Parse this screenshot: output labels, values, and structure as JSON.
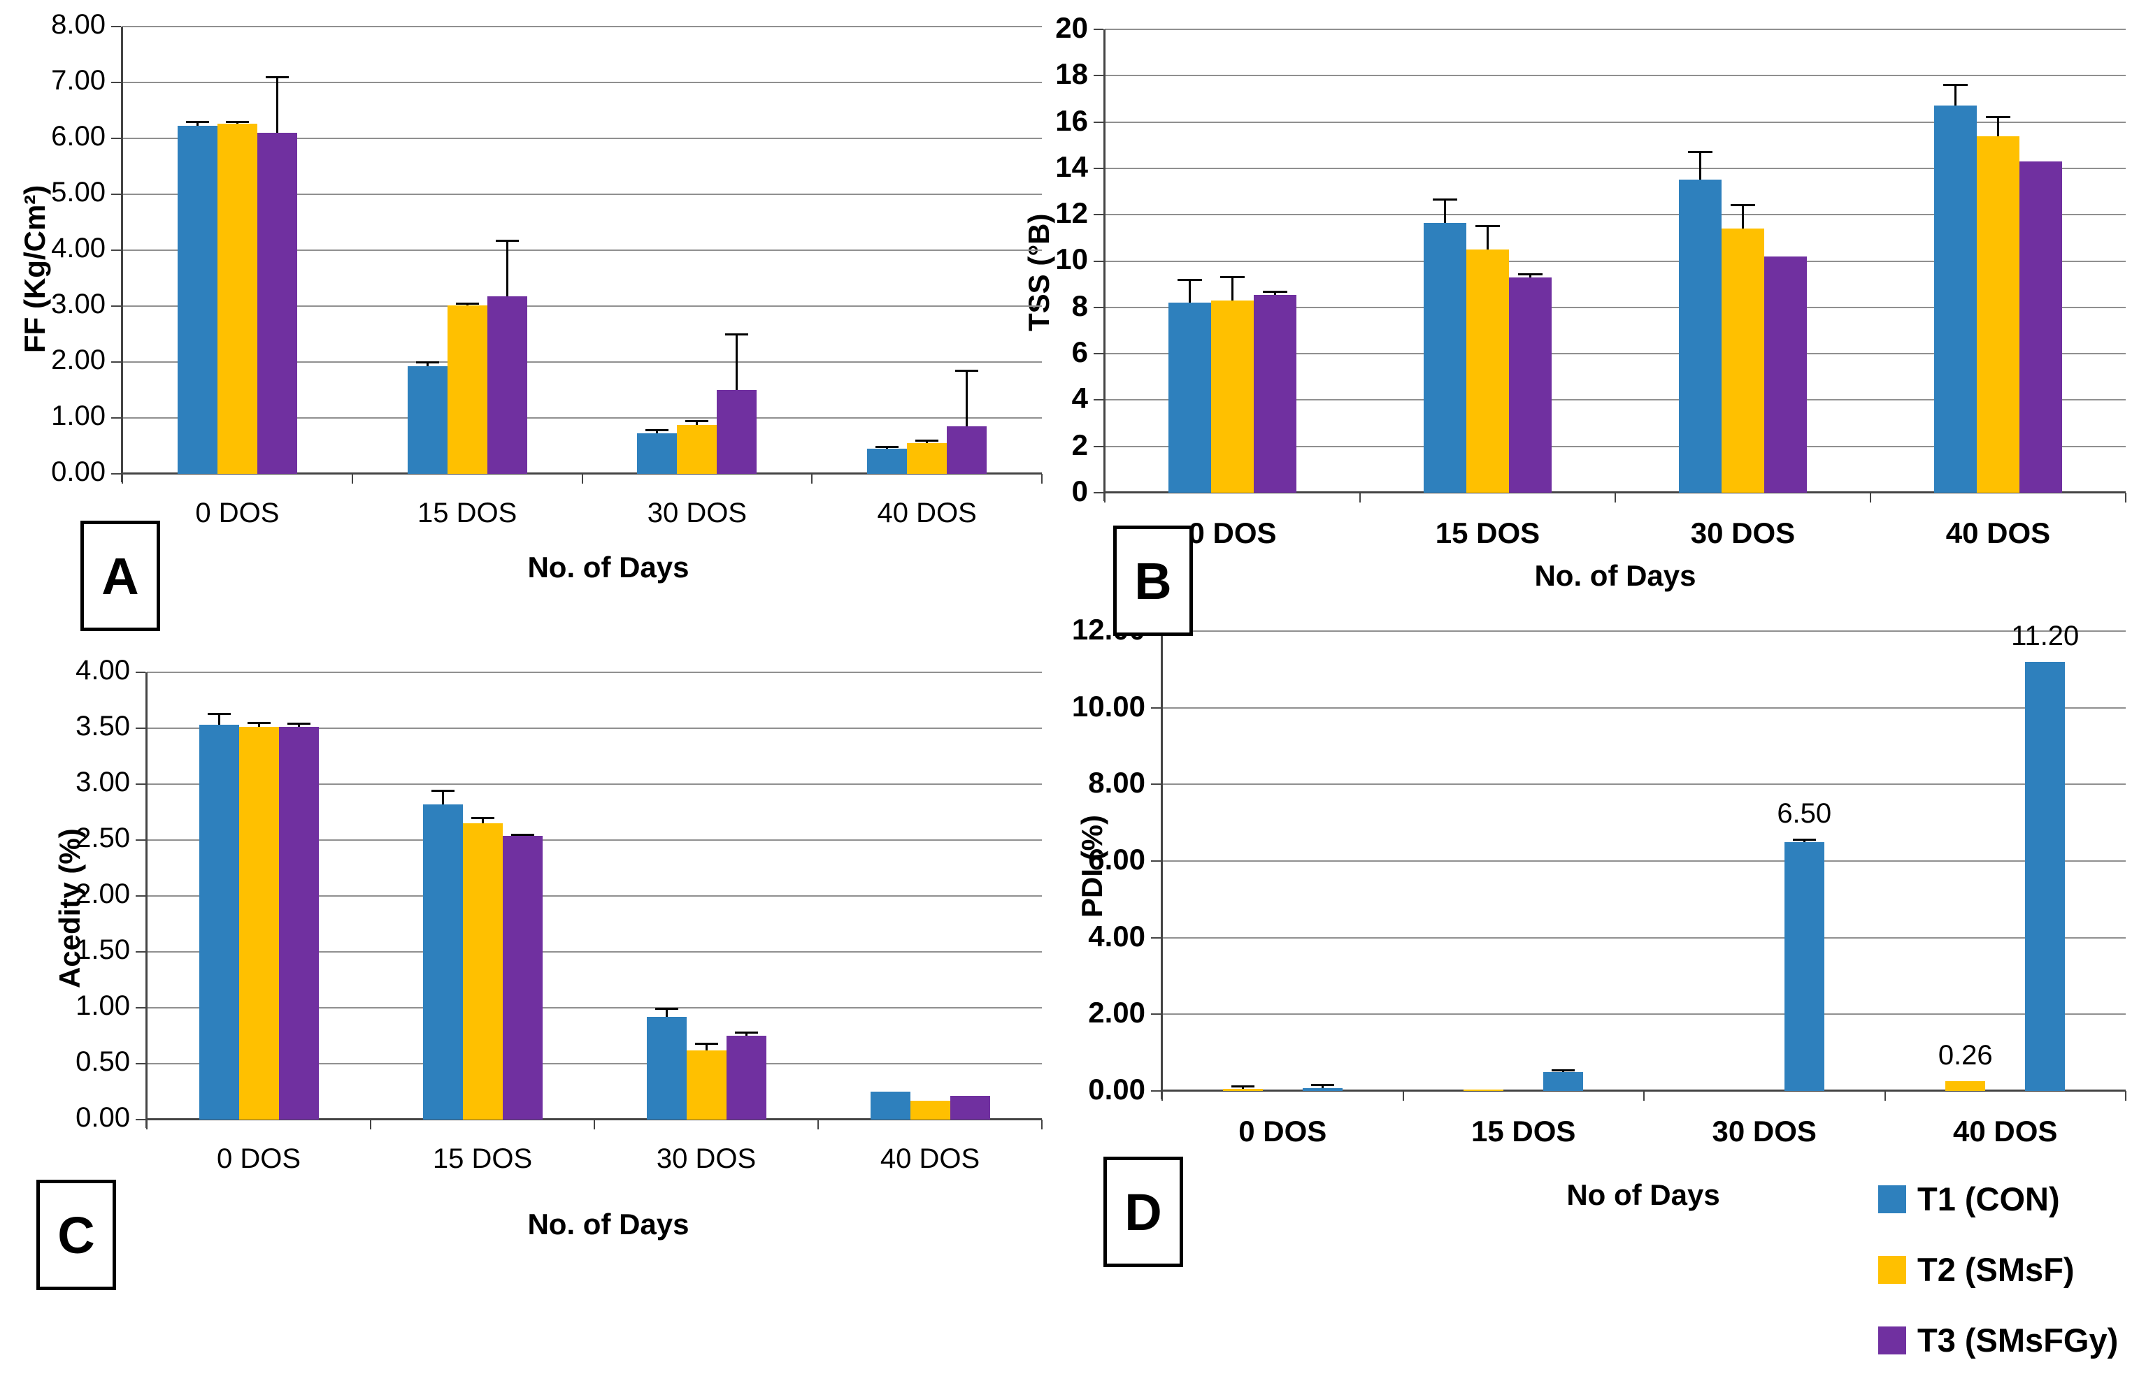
{
  "figure": {
    "legend": {
      "position": "bottom-right",
      "items": [
        {
          "label": "T1 (CON)",
          "color": "#2E80BD"
        },
        {
          "label": "T2 (SMsF)",
          "color": "#FFC000"
        },
        {
          "label": "T3 (SMsFGy)",
          "color": "#7030A0"
        }
      ]
    }
  },
  "chart_data": [
    {
      "panel": "A",
      "type": "bar",
      "title": "",
      "ylabel": "FF (Kg/Cm²)",
      "xlabel": "No. of Days",
      "ylim": [
        0,
        8
      ],
      "ytick_step": 1,
      "ytick_format": "2dp",
      "grid": true,
      "categories": [
        "0 DOS",
        "15 DOS",
        "30 DOS",
        "40 DOS"
      ],
      "series": [
        {
          "name": "T1 (CON)",
          "color": "#2E80BD",
          "values": [
            6.22,
            1.93,
            0.73,
            0.45
          ],
          "errors": [
            0.08,
            0.07,
            0.05,
            0.03
          ]
        },
        {
          "name": "T2 (SMsF)",
          "color": "#FFC000",
          "values": [
            6.26,
            3.01,
            0.88,
            0.55
          ],
          "errors": [
            0.04,
            0.03,
            0.06,
            0.04
          ]
        },
        {
          "name": "T3 (SMsFGy)",
          "color": "#7030A0",
          "values": [
            6.1,
            3.17,
            1.5,
            0.85
          ],
          "errors": [
            1.0,
            1.0,
            1.0,
            1.0
          ]
        }
      ]
    },
    {
      "panel": "B",
      "type": "bar",
      "title": "",
      "ylabel": "TSS (°B)",
      "xlabel": "No. of Days",
      "ylim": [
        0,
        20
      ],
      "ytick_step": 2,
      "ytick_format": "int",
      "grid": true,
      "categories": [
        "0 DOS",
        "15 DOS",
        "30 DOS",
        "40 DOS"
      ],
      "series": [
        {
          "name": "T1 (CON)",
          "color": "#2E80BD",
          "values": [
            8.2,
            11.65,
            13.5,
            16.7
          ],
          "errors": [
            1.0,
            1.0,
            1.2,
            0.9
          ]
        },
        {
          "name": "T2 (SMsF)",
          "color": "#FFC000",
          "values": [
            8.3,
            10.5,
            11.4,
            15.4
          ],
          "errors": [
            1.0,
            1.0,
            1.0,
            0.8
          ]
        },
        {
          "name": "T3 (SMsFGy)",
          "color": "#7030A0",
          "values": [
            8.55,
            9.3,
            10.2,
            14.3
          ],
          "errors": [
            0.12,
            0.12,
            0,
            0
          ]
        }
      ]
    },
    {
      "panel": "C",
      "type": "bar",
      "title": "",
      "ylabel": "Acedity (%)",
      "xlabel": "No. of Days",
      "ylim": [
        0,
        4
      ],
      "ytick_step": 0.5,
      "ytick_format": "2dp",
      "grid": true,
      "categories": [
        "0 DOS",
        "15 DOS",
        "30 DOS",
        "40 DOS"
      ],
      "series": [
        {
          "name": "T1 (CON)",
          "color": "#2E80BD",
          "values": [
            3.53,
            2.82,
            0.92,
            0.25
          ],
          "errors": [
            0.1,
            0.12,
            0.07,
            0
          ]
        },
        {
          "name": "T2 (SMsF)",
          "color": "#FFC000",
          "values": [
            3.51,
            2.65,
            0.62,
            0.17
          ],
          "errors": [
            0.04,
            0.05,
            0.06,
            0
          ]
        },
        {
          "name": "T3 (SMsFGy)",
          "color": "#7030A0",
          "values": [
            3.51,
            2.54,
            0.75,
            0.21
          ],
          "errors": [
            0.03,
            0.01,
            0.03,
            0
          ]
        }
      ]
    },
    {
      "panel": "D",
      "type": "bar",
      "title": "",
      "ylabel": "PDI (%)",
      "xlabel": "No of Days",
      "ylim": [
        0,
        12
      ],
      "ytick_step": 2,
      "ytick_format": "2dp",
      "grid": true,
      "slot_order": [
        1,
        2,
        0
      ],
      "categories": [
        "0 DOS",
        "15 DOS",
        "30 DOS",
        "40 DOS"
      ],
      "series": [
        {
          "name": "T1 (CON)",
          "color": "#2E80BD",
          "values": [
            0.08,
            0.5,
            6.5,
            11.2
          ],
          "errors": [
            0.08,
            0.04,
            0.06,
            0
          ],
          "labels": [
            null,
            null,
            "6.50",
            "11.20"
          ]
        },
        {
          "name": "T2 (SMsF)",
          "color": "#FFC000",
          "values": [
            0.05,
            0.03,
            0.0,
            0.26
          ],
          "errors": [
            0.06,
            0,
            0,
            0
          ],
          "labels": [
            null,
            null,
            null,
            "0.26"
          ]
        },
        {
          "name": "T3 (SMsFGy)",
          "color": "#7030A0",
          "values": [
            0,
            0,
            0,
            0
          ],
          "errors": [
            0,
            0,
            0,
            0
          ]
        }
      ]
    }
  ]
}
